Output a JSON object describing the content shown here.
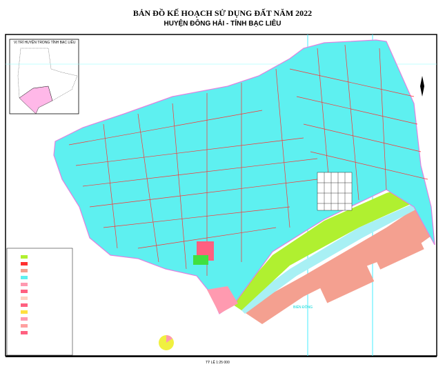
{
  "title": "BẢN ĐỒ KẾ HOẠCH SỬ DỤNG ĐẤT NĂM 2022",
  "subtitle": "HUYỆN ĐÔNG HẢI - TỈNH BẠC LIÊU",
  "inset": {
    "title": "VỊ TRÍ HUYỆN TRONG TỈNH BẠC LIÊU"
  },
  "sea_label": "BIỂN ĐÔNG",
  "scale": "TỶ LỆ 1:25 000",
  "colors": {
    "agricultural": "#5ef0f0",
    "canal": "#ff3030",
    "coastal_forest": "#b0f030",
    "sea_aquaculture": "#f4a090",
    "water": "#a8f0f4",
    "urban": "#ff9ab0",
    "border": "#e080e0"
  }
}
